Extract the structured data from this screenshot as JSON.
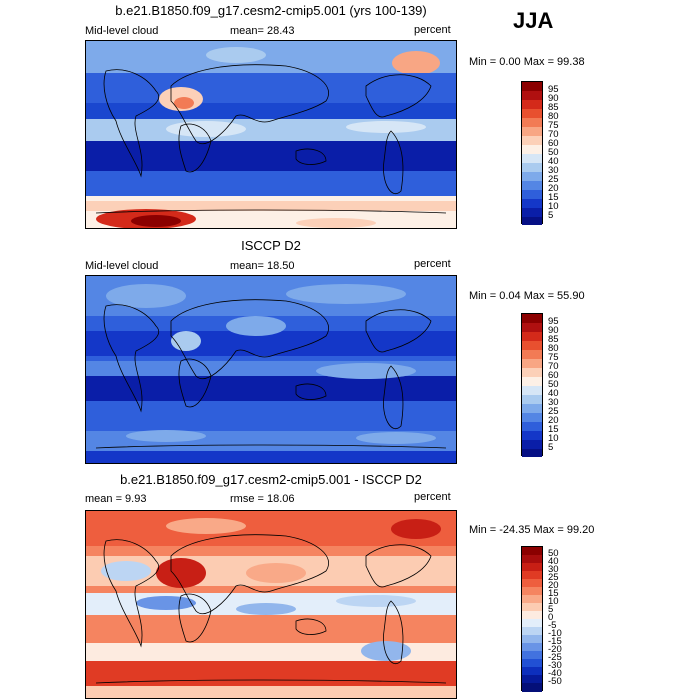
{
  "season": "JJA",
  "panels": [
    {
      "title": "b.e21.B1850.f09_g17.cesm2-cmip5.001 (yrs 100-139)",
      "left_label": "Mid-level cloud",
      "center_label": "mean=  28.43",
      "right_label": "percent",
      "minmax": "Min =   0.00 Max =  99.38",
      "levels": [
        "95",
        "90",
        "85",
        "80",
        "75",
        "70",
        "60",
        "50",
        "40",
        "30",
        "25",
        "20",
        "15",
        "10",
        "5"
      ],
      "colors": [
        "#8b0000",
        "#b01010",
        "#d42a1a",
        "#e8502f",
        "#f27b55",
        "#f8a684",
        "#fcd0b8",
        "#fdf0e6",
        "#d6e6f6",
        "#aacbef",
        "#7eaaea",
        "#5486e4",
        "#2f5fdb",
        "#1437c8",
        "#0a1ea8",
        "#061085"
      ]
    },
    {
      "title": "ISCCP D2",
      "left_label": "Mid-level cloud",
      "center_label": "mean=  18.50",
      "right_label": "percent",
      "minmax": "Min =   0.04 Max =  55.90",
      "levels": [
        "95",
        "90",
        "85",
        "80",
        "75",
        "70",
        "60",
        "50",
        "40",
        "30",
        "25",
        "20",
        "15",
        "10",
        "5"
      ],
      "colors": [
        "#8b0000",
        "#b01010",
        "#d42a1a",
        "#e8502f",
        "#f27b55",
        "#f8a684",
        "#fcd0b8",
        "#fdf0e6",
        "#d6e6f6",
        "#aacbef",
        "#7eaaea",
        "#5486e4",
        "#2f5fdb",
        "#1437c8",
        "#0a1ea8",
        "#061085"
      ]
    },
    {
      "title": "b.e21.B1850.f09_g17.cesm2-cmip5.001 - ISCCP D2",
      "left_label": "mean =   9.93",
      "center_label": "rmse =  18.06",
      "right_label": "percent",
      "minmax": "Min = -24.35 Max =  99.20",
      "levels": [
        "50",
        "40",
        "30",
        "25",
        "20",
        "15",
        "10",
        "5",
        "0",
        "-5",
        "-10",
        "-15",
        "-20",
        "-25",
        "-30",
        "-40",
        "-50"
      ],
      "colors": [
        "#8b0000",
        "#a80d0d",
        "#c81f15",
        "#e03b24",
        "#ee5e3e",
        "#f58460",
        "#f9a988",
        "#fcccb2",
        "#fdebe0",
        "#e3eefa",
        "#bcd5f3",
        "#92b6ec",
        "#6994e6",
        "#4272df",
        "#2150d4",
        "#0d2fbd",
        "#061a9a",
        "#040f78"
      ]
    }
  ]
}
